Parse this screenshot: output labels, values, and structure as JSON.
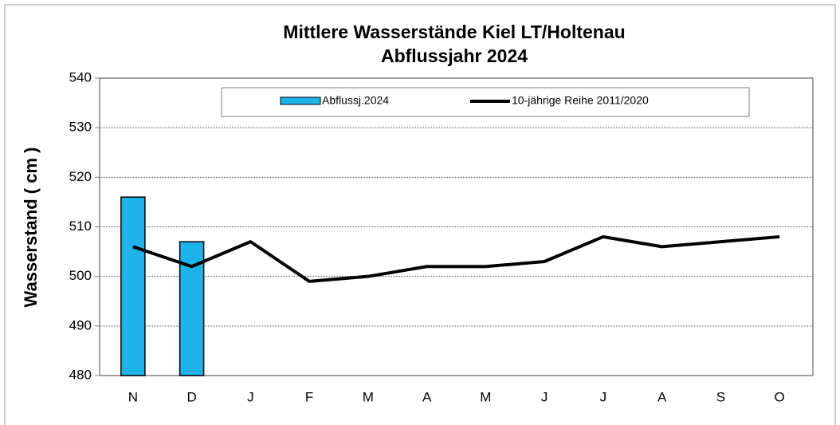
{
  "chart_data": {
    "type": "combo",
    "title": [
      "Mittlere Wasserstände Kiel LT/Holtenau",
      "Abflussjahr 2024"
    ],
    "y_label": "Wasserstand ( cm )",
    "categories": [
      "N",
      "D",
      "J",
      "F",
      "M",
      "A",
      "M",
      "J",
      "J",
      "A",
      "S",
      "O"
    ],
    "series": [
      {
        "name": "Abflussj.2024",
        "type": "bar",
        "color": "#1eb4ea",
        "values": [
          516,
          507,
          null,
          null,
          null,
          null,
          null,
          null,
          null,
          null,
          null,
          null
        ]
      },
      {
        "name": "10-jährige Reihe  2011/2020",
        "type": "line",
        "color": "#000000",
        "values": [
          506,
          502,
          507,
          499,
          500,
          502,
          502,
          503,
          508,
          506,
          507,
          508
        ]
      }
    ],
    "ylim": [
      480,
      540
    ],
    "yticks": [
      480,
      490,
      500,
      510,
      520,
      530,
      540
    ],
    "grid": true
  }
}
